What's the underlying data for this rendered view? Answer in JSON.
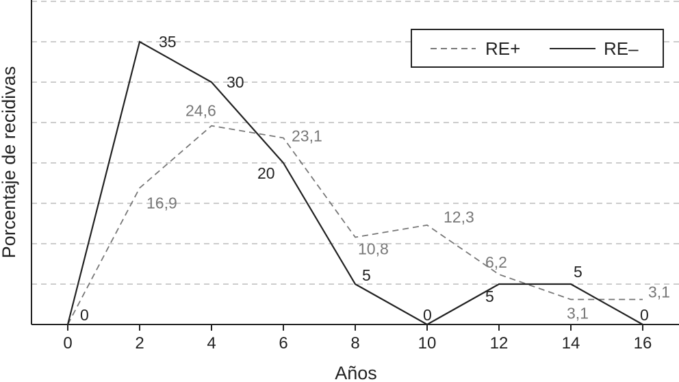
{
  "chart_data": {
    "type": "line",
    "title": "",
    "xlabel": "Años",
    "ylabel": "Porcentaje de recidivas",
    "x": [
      0,
      2,
      4,
      6,
      8,
      10,
      12,
      14,
      16
    ],
    "x_tick_labels": [
      "0",
      "2",
      "4",
      "6",
      "8",
      "10",
      "12",
      "14",
      "16"
    ],
    "xlim": [
      -1,
      17
    ],
    "ylim": [
      0,
      40
    ],
    "grid": "horizontal dashed",
    "legend_position": "top-right",
    "series": [
      {
        "name": "RE+",
        "style": "dashed",
        "color": "#777777",
        "values": [
          0,
          16.9,
          24.6,
          23.1,
          10.8,
          12.3,
          6.2,
          3.1,
          3.1
        ],
        "labels": [
          "",
          "16,9",
          "24,6",
          "23,1",
          "10,8",
          "12,3",
          "6,2",
          "3,1",
          "3,1"
        ]
      },
      {
        "name": "RE–",
        "style": "solid",
        "color": "#222222",
        "values": [
          0,
          35,
          30,
          20,
          5,
          0,
          5,
          5,
          0
        ],
        "labels": [
          "0",
          "35",
          "30",
          "20",
          "5",
          "0",
          "5",
          "5",
          "0"
        ]
      }
    ]
  }
}
